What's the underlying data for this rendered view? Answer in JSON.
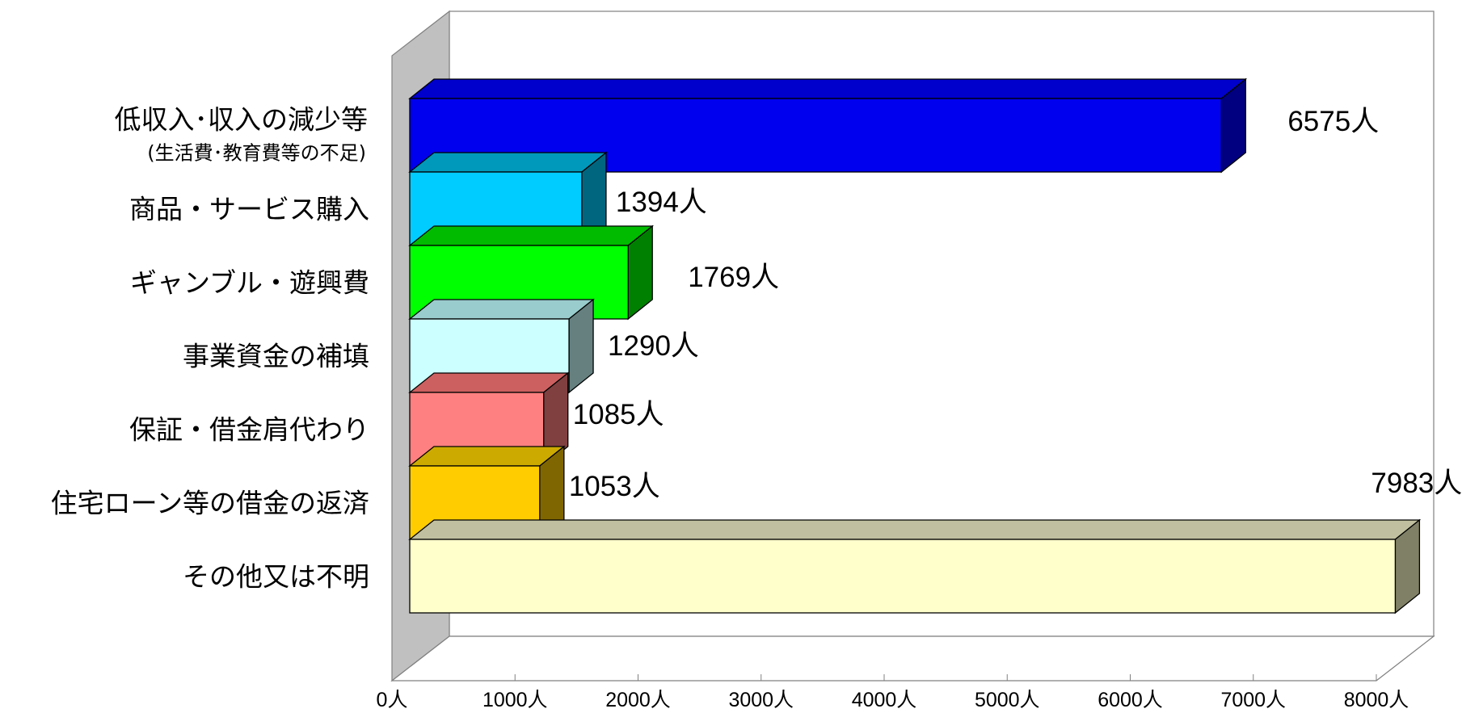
{
  "chart_data": {
    "type": "bar",
    "orientation": "horizontal",
    "three_d": true,
    "unit": "人",
    "categories": [
      {
        "label": "低収入･収入の減少等",
        "sub_label": "(生活費･教育費等の不足)"
      },
      {
        "label": "商品・サービス購入",
        "sub_label": ""
      },
      {
        "label": "ギャンブル・遊興費",
        "sub_label": ""
      },
      {
        "label": "事業資金の補填",
        "sub_label": ""
      },
      {
        "label": "保証・借金肩代わり",
        "sub_label": ""
      },
      {
        "label": "住宅ローン等の借金の返済",
        "sub_label": ""
      },
      {
        "label": "その他又は不明",
        "sub_label": ""
      }
    ],
    "values": [
      6575,
      1394,
      1769,
      1290,
      1085,
      1053,
      7983
    ],
    "value_labels": [
      "6575人",
      "1394人",
      "1769人",
      "1290人",
      "1085人",
      "1053人",
      "7983人"
    ],
    "colors": {
      "front": [
        "#0000ee",
        "#00ccff",
        "#00ff00",
        "#ccffff",
        "#ff8080",
        "#ffcc00",
        "#ffffcc"
      ],
      "side": [
        "#000080",
        "#006680",
        "#008000",
        "#668080",
        "#804040",
        "#806600",
        "#808066"
      ],
      "top": [
        "#0000cc",
        "#0099bb",
        "#00bb00",
        "#99cccc",
        "#cc6060",
        "#ccaa00",
        "#c0c0a0"
      ]
    },
    "xlim": [
      0,
      8000
    ],
    "x_ticks": [
      0,
      1000,
      2000,
      3000,
      4000,
      5000,
      6000,
      7000,
      8000
    ],
    "x_tick_labels": [
      "0人",
      "1000人",
      "2000人",
      "3000人",
      "4000人",
      "5000人",
      "6000人",
      "7000人",
      "8000人"
    ],
    "grid": false,
    "legend": "none",
    "title": "",
    "xlabel": "",
    "ylabel": ""
  }
}
